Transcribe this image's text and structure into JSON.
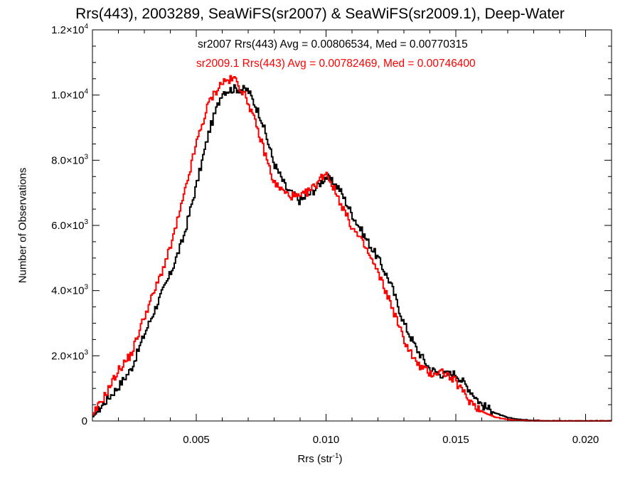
{
  "chart_data": {
    "type": "histogram",
    "title": "Rrs(443), 2003289, SeaWiFS(sr2007) & SeaWiFS(sr2009.1), Deep-Water",
    "xlabel_main": "Rrs (str",
    "xlabel_sup": "-1",
    "xlabel_close": ")",
    "ylabel": "Number of Observations",
    "xlim": [
      0.001,
      0.021
    ],
    "ylim": [
      0,
      12000
    ],
    "xticks": [
      0.005,
      0.01,
      0.015,
      0.02
    ],
    "xtick_labels": [
      "0.005",
      "0.010",
      "0.015",
      "0.020"
    ],
    "yticks": [
      0,
      2000,
      4000,
      6000,
      8000,
      10000,
      12000
    ],
    "ytick_labels": [
      {
        "mant": "0",
        "exp": ""
      },
      {
        "mant": "2.0×10",
        "exp": "3"
      },
      {
        "mant": "4.0×10",
        "exp": "3"
      },
      {
        "mant": "6.0×10",
        "exp": "3"
      },
      {
        "mant": "8.0×10",
        "exp": "3"
      },
      {
        "mant": "1.0×10",
        "exp": "4"
      },
      {
        "mant": "1.2×10",
        "exp": "4"
      }
    ],
    "annotations": [
      "sr2007 Rrs(443) Avg = 0.00806534, Med = 0.00770315",
      "sr2009.1 Rrs(443) Avg = 0.00782469, Med = 0.00746400"
    ],
    "series": [
      {
        "name": "sr2007",
        "color": "#000000",
        "x": [
          0.001,
          0.0015,
          0.002,
          0.0025,
          0.003,
          0.0035,
          0.004,
          0.0045,
          0.005,
          0.0055,
          0.006,
          0.0065,
          0.007,
          0.0075,
          0.008,
          0.0085,
          0.009,
          0.0095,
          0.01,
          0.0105,
          0.011,
          0.0115,
          0.012,
          0.0125,
          0.013,
          0.0135,
          0.014,
          0.0145,
          0.015,
          0.0155,
          0.016,
          0.0165,
          0.017,
          0.0175,
          0.018,
          0.019,
          0.02,
          0.021
        ],
        "values": [
          100,
          600,
          1050,
          1600,
          2650,
          3600,
          4500,
          5600,
          7200,
          8900,
          10100,
          10200,
          10150,
          9300,
          7900,
          7100,
          6750,
          7050,
          7500,
          7150,
          6350,
          5650,
          5000,
          4200,
          3000,
          2200,
          1600,
          1420,
          1450,
          1000,
          500,
          250,
          100,
          40,
          20,
          0,
          0,
          0
        ]
      },
      {
        "name": "sr2009.1",
        "color": "#ff0000",
        "x": [
          0.001,
          0.0015,
          0.002,
          0.0025,
          0.003,
          0.0035,
          0.004,
          0.0045,
          0.005,
          0.0055,
          0.006,
          0.0065,
          0.007,
          0.0075,
          0.008,
          0.0085,
          0.009,
          0.0095,
          0.01,
          0.0105,
          0.011,
          0.0115,
          0.012,
          0.0125,
          0.013,
          0.0135,
          0.014,
          0.0145,
          0.015,
          0.0155,
          0.016,
          0.0165,
          0.017,
          0.0175,
          0.018,
          0.019,
          0.02,
          0.021
        ],
        "values": [
          150,
          800,
          1550,
          2050,
          3200,
          4200,
          5300,
          6800,
          8500,
          9800,
          10400,
          10500,
          9800,
          8600,
          7300,
          6950,
          6850,
          7150,
          7650,
          6800,
          5950,
          5350,
          4550,
          3600,
          2500,
          1750,
          1450,
          1520,
          1200,
          650,
          300,
          120,
          40,
          15,
          5,
          0,
          0,
          0
        ]
      }
    ]
  }
}
